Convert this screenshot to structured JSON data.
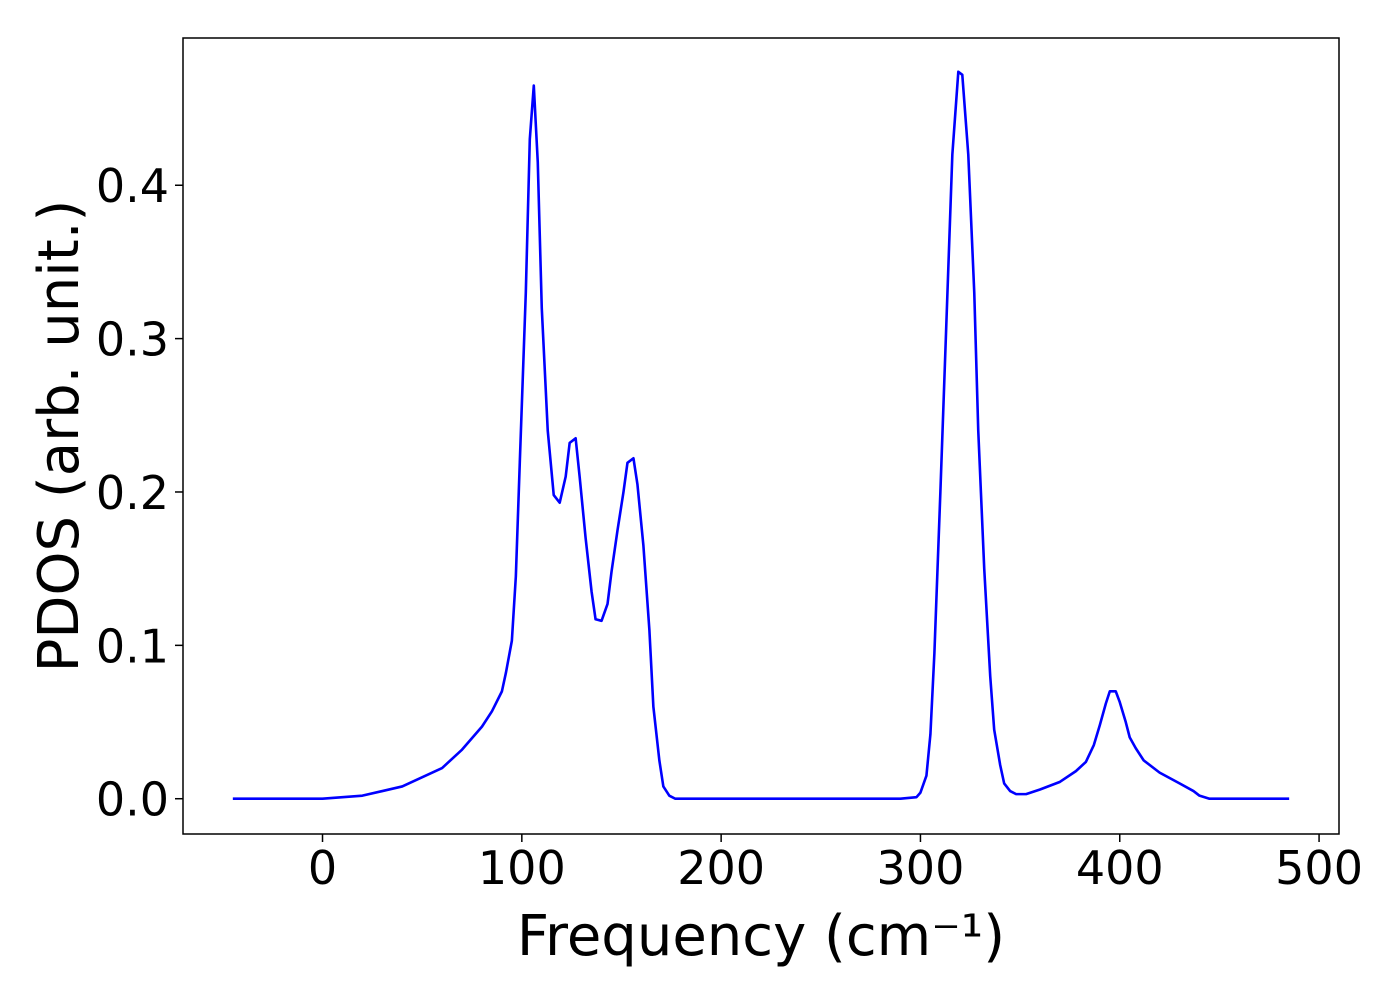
{
  "chart_data": {
    "type": "line",
    "xlabel": "Frequency (cm⁻¹)",
    "ylabel": "PDOS (arb. unit.)",
    "xlim": [
      -70,
      510
    ],
    "ylim": [
      -0.023,
      0.496
    ],
    "xticks": [
      0,
      100,
      200,
      300,
      400,
      500
    ],
    "yticks": [
      {
        "value": 0,
        "label": "0.0"
      },
      0.1,
      0.2,
      0.3,
      0.4
    ],
    "grid": false,
    "x": [
      -45,
      0,
      20,
      40,
      60,
      70,
      80,
      85,
      90,
      92,
      95,
      97,
      99,
      102,
      104,
      106,
      108,
      110,
      113,
      116,
      119,
      122,
      124,
      127,
      129,
      132,
      135,
      137,
      140,
      143,
      145,
      148,
      151,
      153,
      156,
      158,
      161,
      164,
      166,
      169,
      171,
      174,
      177,
      180,
      290,
      298,
      300,
      303,
      305,
      307,
      310,
      313,
      316,
      319,
      321,
      324,
      327,
      329,
      332,
      335,
      337,
      340,
      342,
      345,
      348,
      353,
      360,
      370,
      378,
      383,
      387,
      390,
      393,
      395,
      398,
      400,
      403,
      405,
      408,
      412,
      420,
      430,
      437,
      440,
      445,
      485
    ],
    "series": [
      {
        "color": "#0000ff",
        "values": [
          0,
          0,
          0.002,
          0.008,
          0.02,
          0.032,
          0.047,
          0.057,
          0.07,
          0.082,
          0.103,
          0.145,
          0.22,
          0.33,
          0.43,
          0.465,
          0.415,
          0.32,
          0.24,
          0.198,
          0.193,
          0.21,
          0.232,
          0.235,
          0.21,
          0.17,
          0.135,
          0.117,
          0.116,
          0.127,
          0.148,
          0.175,
          0.2,
          0.219,
          0.222,
          0.205,
          0.165,
          0.11,
          0.06,
          0.025,
          0.008,
          0.002,
          0,
          0,
          0,
          0.001,
          0.004,
          0.015,
          0.042,
          0.095,
          0.2,
          0.31,
          0.42,
          0.474,
          0.472,
          0.42,
          0.33,
          0.24,
          0.15,
          0.08,
          0.045,
          0.022,
          0.01,
          0.005,
          0.003,
          0.003,
          0.006,
          0.011,
          0.018,
          0.024,
          0.035,
          0.048,
          0.062,
          0.07,
          0.07,
          0.063,
          0.05,
          0.04,
          0.033,
          0.025,
          0.017,
          0.01,
          0.005,
          0.002,
          0,
          0
        ]
      }
    ]
  }
}
